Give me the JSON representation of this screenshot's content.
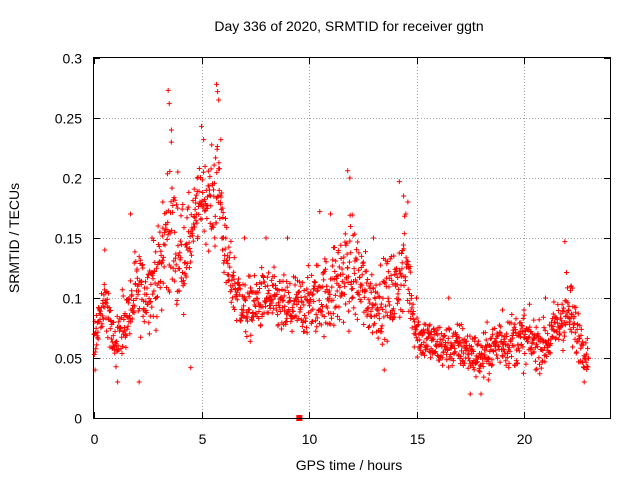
{
  "chart_data": {
    "type": "scatter",
    "title": "Day 336 of 2020, SRMTID for receiver ggtn",
    "xlabel": "GPS time / hours",
    "ylabel": "SRMTID / TECUs",
    "xlim": [
      0,
      24
    ],
    "ylim": [
      0,
      0.3
    ],
    "xticks": [
      0,
      5,
      10,
      15,
      20
    ],
    "xtick_labels": [
      "0",
      "5",
      "10",
      "15",
      "20"
    ],
    "yticks": [
      0,
      0.05,
      0.1,
      0.15,
      0.2,
      0.25,
      0.3
    ],
    "ytick_labels": [
      "0",
      "0.05",
      "0.1",
      "0.15",
      "0.2",
      "0.25",
      "0.3"
    ],
    "grid": true,
    "marker": "plus",
    "color": "#ff0000",
    "zero_marker_x": 9.55,
    "series": [
      {
        "name": "SRMTID",
        "envelope": [
          [
            0.0,
            0.04,
            0.09
          ],
          [
            0.5,
            0.06,
            0.14
          ],
          [
            1.0,
            0.03,
            0.1
          ],
          [
            1.5,
            0.04,
            0.12
          ],
          [
            2.0,
            0.05,
            0.16
          ],
          [
            2.5,
            0.06,
            0.15
          ],
          [
            3.0,
            0.06,
            0.18
          ],
          [
            3.5,
            0.07,
            0.26
          ],
          [
            4.0,
            0.05,
            0.21
          ],
          [
            4.5,
            0.1,
            0.2
          ],
          [
            5.0,
            0.14,
            0.23
          ],
          [
            5.5,
            0.11,
            0.25
          ],
          [
            5.8,
            0.12,
            0.27
          ],
          [
            6.2,
            0.08,
            0.17
          ],
          [
            7.0,
            0.05,
            0.13
          ],
          [
            8.0,
            0.06,
            0.14
          ],
          [
            9.0,
            0.05,
            0.13
          ],
          [
            10.0,
            0.05,
            0.14
          ],
          [
            11.0,
            0.05,
            0.16
          ],
          [
            12.0,
            0.05,
            0.2
          ],
          [
            13.0,
            0.05,
            0.14
          ],
          [
            14.0,
            0.05,
            0.16
          ],
          [
            14.5,
            0.07,
            0.19
          ],
          [
            15.0,
            0.04,
            0.1
          ],
          [
            16.0,
            0.03,
            0.09
          ],
          [
            17.0,
            0.03,
            0.09
          ],
          [
            18.0,
            0.02,
            0.08
          ],
          [
            19.0,
            0.03,
            0.1
          ],
          [
            20.0,
            0.03,
            0.1
          ],
          [
            21.0,
            0.03,
            0.09
          ],
          [
            22.0,
            0.04,
            0.14
          ],
          [
            23.0,
            0.03,
            0.07
          ]
        ],
        "points": [
          [
            0.05,
            0.04
          ],
          [
            0.2,
            0.08
          ],
          [
            0.5,
            0.14
          ],
          [
            0.9,
            0.06
          ],
          [
            1.1,
            0.03
          ],
          [
            1.7,
            0.17
          ],
          [
            2.1,
            0.03
          ],
          [
            2.7,
            0.15
          ],
          [
            3.2,
            0.18
          ],
          [
            3.45,
            0.273
          ],
          [
            3.5,
            0.262
          ],
          [
            3.6,
            0.24
          ],
          [
            3.9,
            0.205
          ],
          [
            4.3,
            0.145
          ],
          [
            4.5,
            0.042
          ],
          [
            4.8,
            0.2
          ],
          [
            5.0,
            0.243
          ],
          [
            5.1,
            0.232
          ],
          [
            5.7,
            0.278
          ],
          [
            5.75,
            0.272
          ],
          [
            5.8,
            0.265
          ],
          [
            5.9,
            0.232
          ],
          [
            6.0,
            0.15
          ],
          [
            7.0,
            0.15
          ],
          [
            8.0,
            0.15
          ],
          [
            9.0,
            0.15
          ],
          [
            10.5,
            0.172
          ],
          [
            11.0,
            0.17
          ],
          [
            11.8,
            0.206
          ],
          [
            11.9,
            0.2
          ],
          [
            12.0,
            0.1
          ],
          [
            13.0,
            0.15
          ],
          [
            13.5,
            0.04
          ],
          [
            14.2,
            0.197
          ],
          [
            14.4,
            0.185
          ],
          [
            14.6,
            0.18
          ],
          [
            15.0,
            0.1
          ],
          [
            16.5,
            0.1
          ],
          [
            17.5,
            0.02
          ],
          [
            18.0,
            0.02
          ],
          [
            19.0,
            0.09
          ],
          [
            20.0,
            0.09
          ],
          [
            21.0,
            0.1
          ],
          [
            21.9,
            0.147
          ],
          [
            22.2,
            0.11
          ],
          [
            22.8,
            0.03
          ],
          [
            23.0,
            0.05
          ]
        ]
      }
    ]
  }
}
